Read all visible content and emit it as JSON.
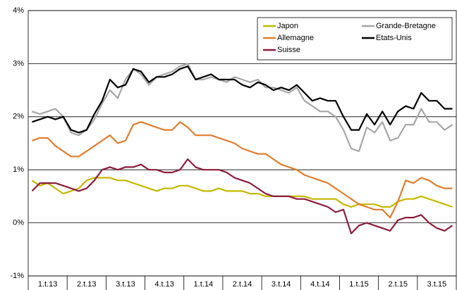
{
  "chart_data": {
    "type": "line",
    "categories": [
      null,
      null,
      "1.t.13",
      null,
      null,
      null,
      null,
      "2.t.13",
      null,
      null,
      null,
      null,
      "3.t.13",
      null,
      null,
      null,
      null,
      "4.t.13",
      null,
      null,
      null,
      null,
      "1.t.14",
      null,
      null,
      null,
      null,
      "2.t.14",
      null,
      null,
      null,
      null,
      "3.t.14",
      null,
      null,
      null,
      null,
      "4.t.14",
      null,
      null,
      null,
      null,
      "1.t.15",
      null,
      null,
      null,
      null,
      "2.t.15",
      null,
      null,
      null,
      null,
      "3.t.15",
      null,
      null
    ],
    "series": [
      {
        "name": "Japon",
        "color": "#c5b800",
        "values": [
          0.8,
          0.7,
          0.75,
          0.65,
          0.55,
          0.6,
          0.65,
          0.8,
          0.85,
          0.85,
          0.85,
          0.8,
          0.8,
          0.75,
          0.7,
          0.65,
          0.6,
          0.65,
          0.65,
          0.7,
          0.7,
          0.65,
          0.6,
          0.6,
          0.65,
          0.6,
          0.6,
          0.6,
          0.55,
          0.55,
          0.5,
          0.5,
          0.5,
          0.5,
          0.5,
          0.5,
          0.45,
          0.45,
          0.45,
          0.45,
          0.35,
          0.3,
          0.35,
          0.35,
          0.35,
          0.3,
          0.3,
          0.4,
          0.45,
          0.45,
          0.5,
          0.45,
          0.4,
          0.35,
          0.3
        ]
      },
      {
        "name": "Grande-Bretagne",
        "color": "#a6a6a6",
        "values": [
          2.1,
          2.05,
          2.1,
          2.15,
          2.0,
          1.7,
          1.65,
          1.75,
          1.95,
          2.25,
          2.5,
          2.35,
          2.7,
          2.9,
          2.8,
          2.6,
          2.75,
          2.8,
          2.85,
          2.95,
          3.0,
          2.7,
          2.7,
          2.75,
          2.7,
          2.65,
          2.75,
          2.7,
          2.65,
          2.7,
          2.55,
          2.55,
          2.5,
          2.45,
          2.55,
          2.3,
          2.2,
          2.1,
          2.1,
          2.0,
          1.75,
          1.4,
          1.35,
          1.8,
          1.7,
          1.9,
          1.55,
          1.6,
          1.85,
          1.85,
          2.15,
          1.9,
          1.9,
          1.75,
          1.85
        ]
      },
      {
        "name": "Allemagne",
        "color": "#e07d2e",
        "values": [
          1.55,
          1.6,
          1.6,
          1.45,
          1.35,
          1.25,
          1.25,
          1.35,
          1.45,
          1.55,
          1.65,
          1.5,
          1.55,
          1.85,
          1.9,
          1.85,
          1.8,
          1.75,
          1.75,
          1.9,
          1.8,
          1.65,
          1.65,
          1.65,
          1.6,
          1.55,
          1.5,
          1.4,
          1.35,
          1.3,
          1.3,
          1.2,
          1.1,
          1.05,
          1.0,
          0.9,
          0.85,
          0.8,
          0.75,
          0.65,
          0.55,
          0.45,
          0.35,
          0.3,
          0.25,
          0.25,
          0.1,
          0.4,
          0.8,
          0.75,
          0.85,
          0.8,
          0.7,
          0.65,
          0.65
        ]
      },
      {
        "name": "Etats-Unis",
        "color": "#000000",
        "values": [
          1.9,
          1.95,
          2.0,
          1.95,
          2.0,
          1.75,
          1.7,
          1.75,
          2.05,
          2.3,
          2.7,
          2.55,
          2.6,
          2.9,
          2.85,
          2.65,
          2.75,
          2.75,
          2.8,
          2.9,
          2.95,
          2.7,
          2.75,
          2.8,
          2.7,
          2.7,
          2.7,
          2.6,
          2.55,
          2.65,
          2.6,
          2.5,
          2.55,
          2.5,
          2.6,
          2.45,
          2.3,
          2.35,
          2.3,
          2.3,
          2.0,
          1.75,
          1.75,
          2.05,
          1.85,
          2.1,
          1.85,
          2.1,
          2.2,
          2.15,
          2.45,
          2.3,
          2.3,
          2.15,
          2.15
        ]
      },
      {
        "name": "Suisse",
        "color": "#8c1c3c",
        "values": [
          0.6,
          0.75,
          0.75,
          0.75,
          0.7,
          0.65,
          0.6,
          0.65,
          0.8,
          1.0,
          1.05,
          1.0,
          1.05,
          1.05,
          1.1,
          1.0,
          1.0,
          0.95,
          0.95,
          1.0,
          1.2,
          1.05,
          1.0,
          1.0,
          1.0,
          0.95,
          0.85,
          0.8,
          0.75,
          0.65,
          0.55,
          0.5,
          0.5,
          0.5,
          0.45,
          0.45,
          0.4,
          0.35,
          0.3,
          0.2,
          0.25,
          -0.2,
          -0.05,
          0.0,
          -0.05,
          -0.1,
          -0.15,
          0.05,
          0.1,
          0.1,
          0.15,
          0.0,
          -0.1,
          -0.15,
          -0.05
        ]
      }
    ],
    "ylim": [
      -1,
      4
    ],
    "yticks": [
      {
        "value": -1,
        "label": "-1%"
      },
      {
        "value": 0,
        "label": "0%"
      },
      {
        "value": 1,
        "label": "1%"
      },
      {
        "value": 2,
        "label": "2%"
      },
      {
        "value": 3,
        "label": "3%"
      },
      {
        "value": 4,
        "label": "4%"
      }
    ],
    "grid": true,
    "legend": "top-right"
  }
}
